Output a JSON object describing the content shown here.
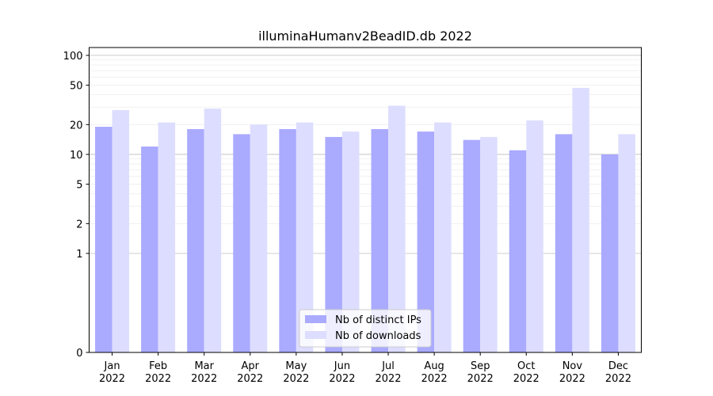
{
  "chart_data": {
    "type": "bar",
    "title": "illuminaHumanv2BeadID.db 2022",
    "xlabel": "",
    "ylabel": "",
    "yscale": "symlog",
    "ylim": [
      0,
      120
    ],
    "yticks": [
      0,
      1,
      2,
      5,
      10,
      20,
      50,
      100
    ],
    "ytick_labels": [
      "0",
      "1",
      "2",
      "5",
      "10",
      "20",
      "50",
      "100"
    ],
    "categories": [
      "Jan\n2022",
      "Feb\n2022",
      "Mar\n2022",
      "Apr\n2022",
      "May\n2022",
      "Jun\n2022",
      "Jul\n2022",
      "Aug\n2022",
      "Sep\n2022",
      "Oct\n2022",
      "Nov\n2022",
      "Dec\n2022"
    ],
    "series": [
      {
        "name": "Nb of distinct IPs",
        "color": "#aaaaff",
        "values": [
          19,
          12,
          18,
          16,
          18,
          15,
          18,
          17,
          14,
          11,
          16,
          10
        ]
      },
      {
        "name": "Nb of downloads",
        "color": "#ddddff",
        "values": [
          28,
          21,
          29,
          20,
          21,
          17,
          31,
          21,
          15,
          22,
          47,
          16
        ]
      }
    ],
    "legend": {
      "position": "bottom-center"
    },
    "grid": {
      "major_color": "#bbbbbb",
      "minor_color": "#eeeeee"
    }
  }
}
